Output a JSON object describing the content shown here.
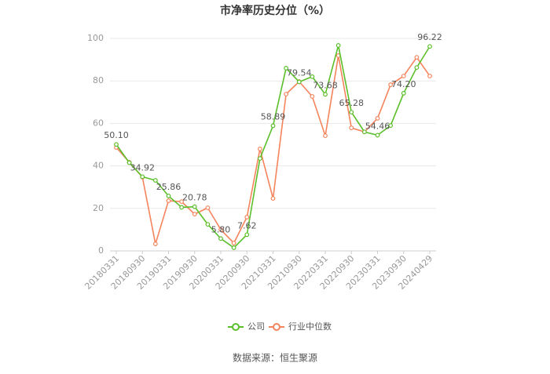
{
  "chart_data": {
    "type": "line",
    "title": "市净率历史分位（%）",
    "categories": [
      "20180331",
      null,
      "20180930",
      null,
      "20190331",
      null,
      "20190930",
      null,
      "20200331",
      null,
      "20200930",
      null,
      "20210331",
      null,
      "20210930",
      null,
      "20220331",
      null,
      "20220930",
      null,
      "20230331",
      null,
      "20230930",
      null,
      "20240429"
    ],
    "series": [
      {
        "name": "公司",
        "color": "#5bbf2a",
        "values": [
          50.1,
          41.5,
          34.92,
          33.2,
          25.86,
          20.5,
          20.78,
          12.5,
          5.8,
          1.5,
          7.62,
          43.5,
          58.89,
          86,
          79.54,
          82,
          73.68,
          96.7,
          65.28,
          56,
          54.46,
          59,
          74.2,
          86.3,
          96.22
        ],
        "value_labels": [
          "50.10",
          null,
          "34.92",
          null,
          "25.86",
          null,
          "20.78",
          null,
          "5.80",
          null,
          "7.62",
          null,
          "58.89",
          null,
          "79.54",
          null,
          "73.68",
          null,
          "65.28",
          null,
          "54.46",
          null,
          "74.20",
          null,
          "96.22"
        ]
      },
      {
        "name": "行业中位数",
        "color": "#f5845c",
        "values": [
          48.7,
          41.7,
          34.7,
          3.3,
          23.6,
          23.2,
          17.3,
          20.3,
          10,
          3.7,
          15.9,
          48,
          24.7,
          73.8,
          79.7,
          72.7,
          54.2,
          91.9,
          57.9,
          56,
          62.4,
          78.2,
          82.3,
          91.1,
          82.3
        ]
      }
    ],
    "ylim": [
      0,
      100
    ],
    "yticks": [
      0,
      20,
      40,
      60,
      80,
      100
    ],
    "grid": true,
    "source": "数据来源：恒生聚源"
  }
}
